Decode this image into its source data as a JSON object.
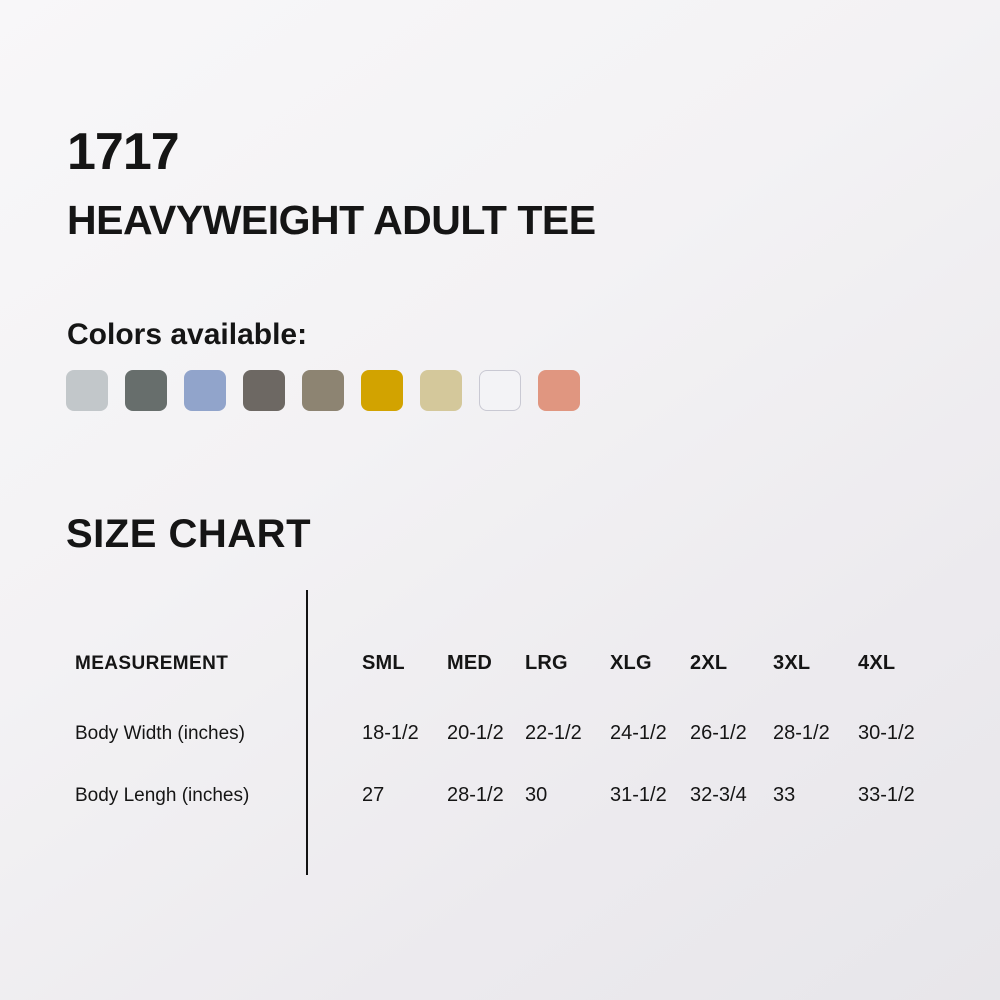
{
  "product": {
    "code": "1717",
    "name": "HEAVYWEIGHT ADULT TEE"
  },
  "colors_section": {
    "label": "Colors available:",
    "swatches": [
      "#c2c7ca",
      "#676e6c",
      "#91a4cb",
      "#6d6863",
      "#8d8472",
      "#d2a300",
      "#d4c89b",
      "#f3f3f6",
      "#e09680"
    ]
  },
  "size_chart": {
    "title": "SIZE CHART",
    "measurement_header": "MEASUREMENT",
    "size_headers": [
      "SML",
      "MED",
      "LRG",
      "XLG",
      "2XL",
      "3XL",
      "4XL"
    ],
    "rows": [
      {
        "label": "Body Width (inches)",
        "values": [
          "18-1/2",
          "20-1/2",
          "22-1/2",
          "24-1/2",
          "26-1/2",
          "28-1/2",
          "30-1/2"
        ]
      },
      {
        "label": "Body Lengh (inches)",
        "values": [
          "27",
          "28-1/2",
          "30",
          "31-1/2",
          "32-3/4",
          "33",
          "33-1/2"
        ]
      }
    ]
  },
  "theme": {
    "text_color": "#151515",
    "divider_color": "#131313",
    "background_top_left": "#f8f7f9",
    "background_bottom_right": "#e7e6ea"
  }
}
